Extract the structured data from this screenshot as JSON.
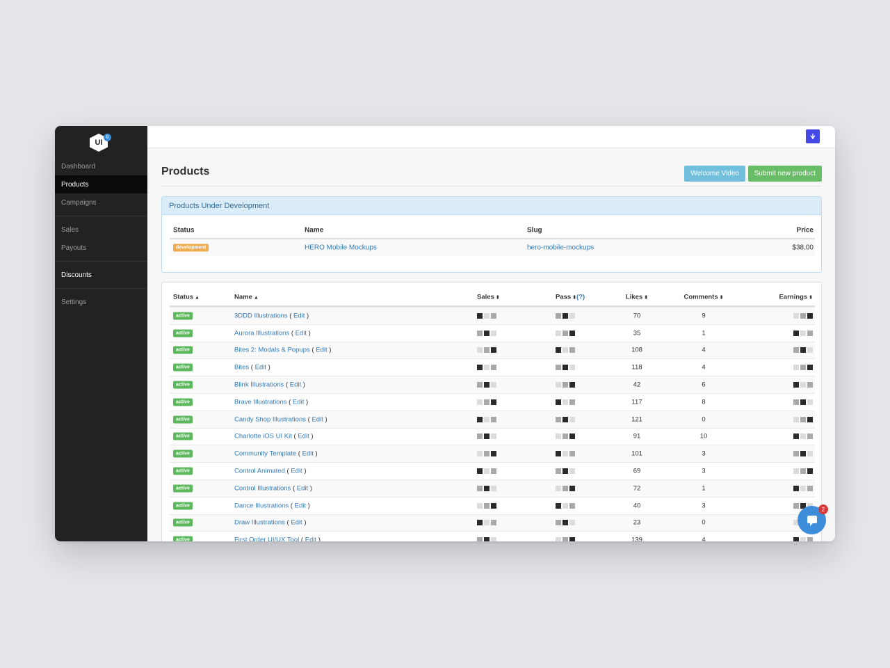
{
  "brand": {
    "logo_text": "UI",
    "logo_badge": "8"
  },
  "sidebar": {
    "items": [
      {
        "label": "Dashboard"
      },
      {
        "label": "Products"
      },
      {
        "label": "Campaigns"
      },
      {
        "label": "Sales"
      },
      {
        "label": "Payouts"
      },
      {
        "label": "Discounts"
      },
      {
        "label": "Settings"
      }
    ]
  },
  "header": {
    "title": "Products",
    "welcome_label": "Welcome Video",
    "submit_label": "Submit new product"
  },
  "dev_panel": {
    "title": "Products Under Development",
    "columns": [
      "Status",
      "Name",
      "Slug",
      "Price"
    ],
    "rows": [
      {
        "status": "development",
        "name": "HERO Mobile Mockups",
        "slug": "hero-mobile-mockups",
        "price": "$38.00"
      }
    ]
  },
  "products": {
    "columns": {
      "status": "Status",
      "name": "Name",
      "sales": "Sales",
      "pass": "Pass",
      "pass_help": "(?)",
      "likes": "Likes",
      "comments": "Comments",
      "earnings": "Earnings"
    },
    "sort_asc": "▲",
    "sort_both": "⬍",
    "edit_label": "Edit",
    "rows": [
      {
        "status": "active",
        "name": "3DDD Illustrations",
        "likes": "70",
        "comments": "9"
      },
      {
        "status": "active",
        "name": "Aurora Illustrations",
        "likes": "35",
        "comments": "1"
      },
      {
        "status": "active",
        "name": "Bites 2: Modals & Popups",
        "likes": "108",
        "comments": "4"
      },
      {
        "status": "active",
        "name": "Bites",
        "likes": "118",
        "comments": "4"
      },
      {
        "status": "active",
        "name": "Blink Illustrations",
        "likes": "42",
        "comments": "6"
      },
      {
        "status": "active",
        "name": "Brave Illustrations",
        "likes": "117",
        "comments": "8"
      },
      {
        "status": "active",
        "name": "Candy Shop Illustrations",
        "likes": "121",
        "comments": "0"
      },
      {
        "status": "active",
        "name": "Charlotte iOS UI Kit",
        "likes": "91",
        "comments": "10"
      },
      {
        "status": "active",
        "name": "Community Template",
        "likes": "101",
        "comments": "3"
      },
      {
        "status": "active",
        "name": "Control Animated",
        "likes": "69",
        "comments": "3"
      },
      {
        "status": "active",
        "name": "Control Illustrations",
        "likes": "72",
        "comments": "1"
      },
      {
        "status": "active",
        "name": "Dance Illustrations",
        "likes": "40",
        "comments": "3"
      },
      {
        "status": "active",
        "name": "Draw Illustrations",
        "likes": "23",
        "comments": "0"
      },
      {
        "status": "active",
        "name": "First Order UI/UX Tool",
        "likes": "139",
        "comments": "4"
      }
    ]
  },
  "notifications": {
    "count": "2"
  },
  "icons": {
    "topbar": "ui8-leaf-icon",
    "chat": "chat-bubble-icon"
  },
  "colors": {
    "sidebar_bg": "#222222",
    "accent_blue": "#337ab7",
    "active_green": "#5cb85c",
    "dev_orange": "#f0ad4e",
    "info_button": "#71bfdc",
    "success_button": "#6abd67"
  }
}
